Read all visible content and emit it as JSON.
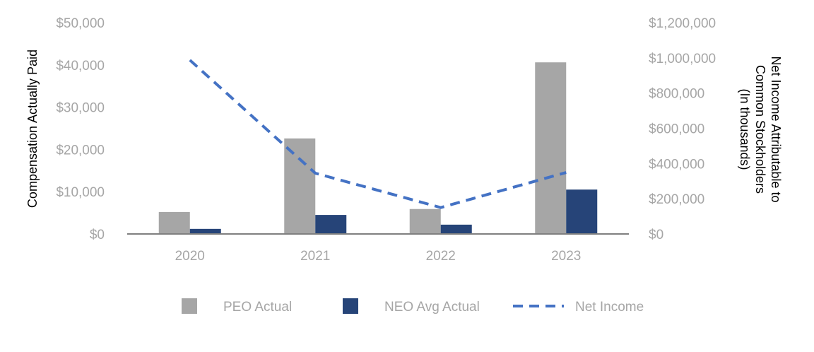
{
  "chart_data": {
    "type": "bar",
    "title": "",
    "categories": [
      "2020",
      "2021",
      "2022",
      "2023"
    ],
    "series": [
      {
        "name": "PEO Actual",
        "type": "bar",
        "axis": "left",
        "color": "#a6a6a6",
        "values": [
          5200,
          22600,
          5900,
          40600
        ]
      },
      {
        "name": "NEO Avg Actual",
        "type": "bar",
        "axis": "left",
        "color": "#264478",
        "values": [
          1200,
          4500,
          2200,
          10500
        ]
      },
      {
        "name": "Net Income",
        "type": "line",
        "style": "dashed",
        "axis": "right",
        "color": "#4472c4",
        "values": [
          987000,
          345000,
          150000,
          349000
        ]
      }
    ],
    "ylabel": "Compensation Actually Paid",
    "ylim": [
      0,
      50000
    ],
    "yticks": [
      "$0",
      "$10,000",
      "$20,000",
      "$30,000",
      "$40,000",
      "$50,000"
    ],
    "y2label": [
      "Net Income Attributable to",
      "Common Stockholders",
      "(In thousands)"
    ],
    "y2lim": [
      0,
      1200000
    ],
    "y2ticks": [
      "$0",
      "$200,000",
      "$400,000",
      "$600,000",
      "$800,000",
      "$1,000,000",
      "$1,200,000"
    ],
    "grid": false,
    "legend": "bottom"
  }
}
